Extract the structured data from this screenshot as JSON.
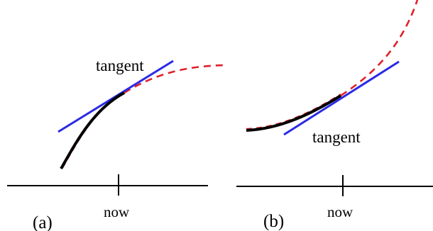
{
  "panels": [
    {
      "id": "a",
      "panel_label": "(a)",
      "tangent_label": "tangent",
      "axis_label": "now"
    },
    {
      "id": "b",
      "panel_label": "(b)",
      "tangent_label": "tangent",
      "axis_label": "now"
    }
  ],
  "colors": {
    "past_curve": "#000000",
    "tangent_line": "#2a2ae6",
    "future_curve": "#e0202a",
    "axis": "#000000"
  }
}
